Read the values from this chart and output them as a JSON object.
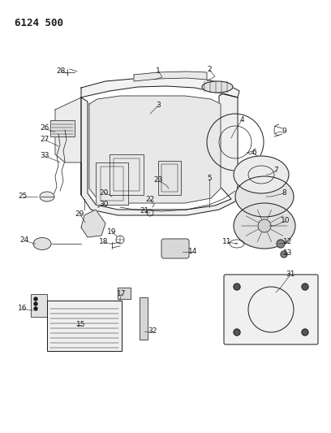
{
  "title": "6124 500",
  "bg_color": "#ffffff",
  "line_color": "#1a1a1a",
  "text_color": "#1a1a1a",
  "title_fontsize": 9,
  "label_fontsize": 6.5,
  "fig_width": 4.08,
  "fig_height": 5.33,
  "dpi": 100,
  "xlim": [
    0,
    408
  ],
  "ylim": [
    0,
    533
  ]
}
